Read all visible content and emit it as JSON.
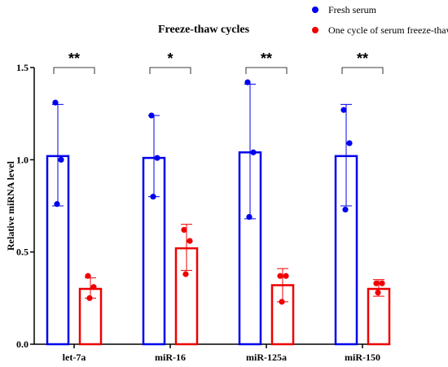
{
  "chart_data": {
    "type": "bar",
    "title": "Freeze-thaw cycles",
    "xlabel": "",
    "ylabel": "Relative miRNA level",
    "ylim": [
      0,
      1.5
    ],
    "yticks": [
      "0.0",
      "0.5",
      "1.0",
      "1.5"
    ],
    "ytick_values": [
      0,
      0.5,
      1.0,
      1.5
    ],
    "grid": false,
    "legend_position": "top-right",
    "categories": [
      "let-7a",
      "miR-16",
      "miR-125a",
      "miR-150"
    ],
    "series": [
      {
        "name": "Fresh serum",
        "color": "#0000ee",
        "values": [
          1.02,
          1.01,
          1.04,
          1.02
        ],
        "error_upper": [
          1.3,
          1.24,
          1.41,
          1.3
        ],
        "error_lower": [
          0.75,
          0.8,
          0.68,
          0.75
        ],
        "points": [
          [
            1.31,
            1.0,
            0.76
          ],
          [
            1.24,
            1.01,
            0.8
          ],
          [
            1.42,
            1.04,
            0.69
          ],
          [
            1.27,
            1.09,
            0.73
          ]
        ]
      },
      {
        "name": "One cycle of serum freeze-thaw",
        "color": "#ee0000",
        "values": [
          0.3,
          0.52,
          0.32,
          0.3
        ],
        "error_upper": [
          0.36,
          0.65,
          0.41,
          0.35
        ],
        "error_lower": [
          0.25,
          0.4,
          0.23,
          0.26
        ],
        "points": [
          [
            0.37,
            0.31,
            0.25
          ],
          [
            0.62,
            0.56,
            0.38
          ],
          [
            0.37,
            0.37,
            0.23
          ],
          [
            0.33,
            0.33,
            0.28
          ]
        ]
      }
    ],
    "significance": [
      "**",
      "*",
      "**",
      "**"
    ]
  }
}
